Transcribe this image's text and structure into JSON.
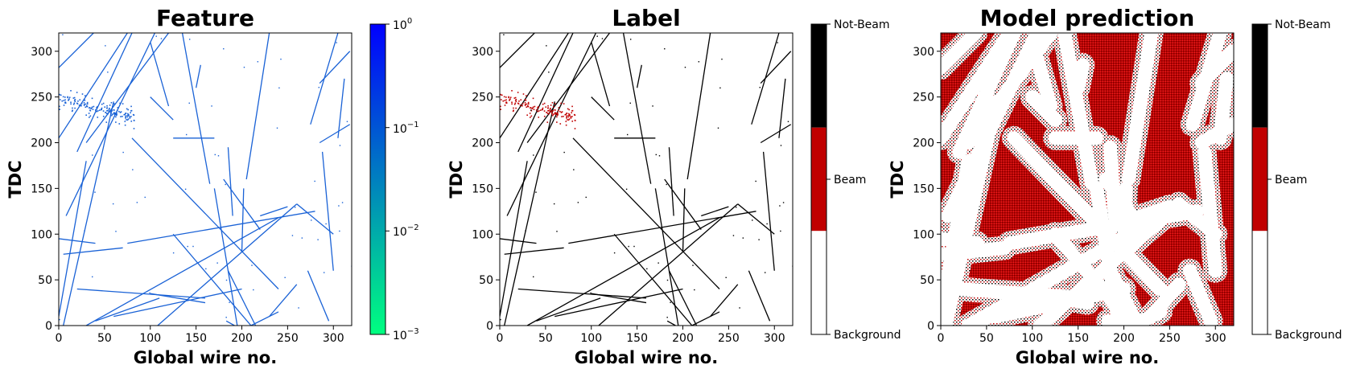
{
  "chart_data": [
    {
      "type": "heatmap",
      "title": "Feature",
      "xlabel": "Global wire no.",
      "ylabel": "TDC",
      "xlim": [
        0,
        320
      ],
      "ylim": [
        0,
        320
      ],
      "xticks": [
        "0",
        "50",
        "100",
        "150",
        "200",
        "250",
        "300"
      ],
      "yticks": [
        "0",
        "50",
        "100",
        "150",
        "200",
        "250",
        "300"
      ],
      "colorbar": {
        "scale": "log",
        "range": [
          0.001,
          1
        ],
        "ticks": [
          {
            "base": "10",
            "exp": "0"
          },
          {
            "base": "10",
            "exp": "−1"
          },
          {
            "base": "10",
            "exp": "−2"
          },
          {
            "base": "10",
            "exp": "−3"
          }
        ],
        "colors": [
          "#00ff80",
          "#0000ff"
        ]
      },
      "track_color": "#1a62d6"
    },
    {
      "type": "heatmap",
      "title": "Label",
      "xlabel": "Global wire no.",
      "ylabel": "TDC",
      "xlim": [
        0,
        320
      ],
      "ylim": [
        0,
        320
      ],
      "xticks": [
        "0",
        "50",
        "100",
        "150",
        "200",
        "250",
        "300"
      ],
      "yticks": [
        "0",
        "50",
        "100",
        "150",
        "200",
        "250",
        "300"
      ],
      "colorbar": {
        "classes": [
          "Background",
          "Beam",
          "Not-Beam"
        ],
        "colors": [
          "#ffffff",
          "#c00000",
          "#000000"
        ]
      }
    },
    {
      "type": "heatmap",
      "title": "Model prediction",
      "xlabel": "Global wire no.",
      "ylabel": "TDC",
      "xlim": [
        0,
        320
      ],
      "ylim": [
        0,
        320
      ],
      "xticks": [
        "0",
        "50",
        "100",
        "150",
        "200",
        "250",
        "300"
      ],
      "yticks": [
        "0",
        "50",
        "100",
        "150",
        "200",
        "250",
        "300"
      ],
      "colorbar": {
        "classes": [
          "Background",
          "Beam",
          "Not-Beam"
        ],
        "colors": [
          "#ffffff",
          "#c00000",
          "#000000"
        ]
      }
    }
  ],
  "tracks": [
    [
      [
        0,
        282
      ],
      [
        38,
        320
      ]
    ],
    [
      [
        0,
        205
      ],
      [
        75,
        320
      ]
    ],
    [
      [
        20,
        190
      ],
      [
        80,
        320
      ]
    ],
    [
      [
        30,
        200
      ],
      [
        120,
        320
      ]
    ],
    [
      [
        8,
        120
      ],
      [
        105,
        320
      ]
    ],
    [
      [
        80,
        205
      ],
      [
        240,
        40
      ]
    ],
    [
      [
        0,
        10
      ],
      [
        30,
        180
      ]
    ],
    [
      [
        5,
        0
      ],
      [
        60,
        245
      ]
    ],
    [
      [
        108,
        0
      ],
      [
        260,
        133
      ]
    ],
    [
      [
        30,
        0
      ],
      [
        240,
        118
      ]
    ],
    [
      [
        75,
        90
      ],
      [
        280,
        125
      ]
    ],
    [
      [
        125,
        100
      ],
      [
        210,
        0
      ]
    ],
    [
      [
        135,
        320
      ],
      [
        165,
        155
      ]
    ],
    [
      [
        155,
        285
      ],
      [
        150,
        260
      ]
    ],
    [
      [
        183,
        5
      ],
      [
        192,
        0
      ]
    ],
    [
      [
        200,
        80
      ],
      [
        202,
        150
      ]
    ],
    [
      [
        185,
        60
      ],
      [
        215,
        0
      ]
    ],
    [
      [
        260,
        133
      ],
      [
        300,
        100
      ]
    ],
    [
      [
        230,
        320
      ],
      [
        205,
        160
      ]
    ],
    [
      [
        285,
        200
      ],
      [
        318,
        220
      ]
    ],
    [
      [
        275,
        220
      ],
      [
        305,
        320
      ]
    ],
    [
      [
        285,
        265
      ],
      [
        318,
        300
      ]
    ],
    [
      [
        288,
        190
      ],
      [
        300,
        60
      ]
    ],
    [
      [
        260,
        45
      ],
      [
        230,
        10
      ]
    ],
    [
      [
        295,
        5
      ],
      [
        272,
        60
      ]
    ],
    [
      [
        100,
        310
      ],
      [
        120,
        240
      ]
    ],
    [
      [
        100,
        250
      ],
      [
        125,
        225
      ]
    ],
    [
      [
        180,
        160
      ],
      [
        220,
        105
      ]
    ],
    [
      [
        185,
        195
      ],
      [
        190,
        120
      ]
    ],
    [
      [
        240,
        15
      ],
      [
        210,
        0
      ]
    ],
    [
      [
        5,
        78
      ],
      [
        70,
        85
      ]
    ],
    [
      [
        20,
        40
      ],
      [
        160,
        30
      ]
    ],
    [
      [
        40,
        5
      ],
      [
        110,
        30
      ]
    ],
    [
      [
        100,
        35
      ],
      [
        160,
        25
      ]
    ],
    [
      [
        170,
        150
      ],
      [
        195,
        0
      ]
    ],
    [
      [
        125,
        205
      ],
      [
        170,
        205
      ]
    ],
    [
      [
        60,
        10
      ],
      [
        200,
        40
      ]
    ],
    [
      [
        220,
        120
      ],
      [
        250,
        130
      ]
    ],
    [
      [
        0,
        95
      ],
      [
        40,
        90
      ]
    ],
    [
      [
        305,
        205
      ],
      [
        312,
        270
      ]
    ]
  ],
  "beam_cluster": {
    "x": [
      0,
      82
    ],
    "y": [
      228,
      258
    ],
    "slope": -0.28
  }
}
